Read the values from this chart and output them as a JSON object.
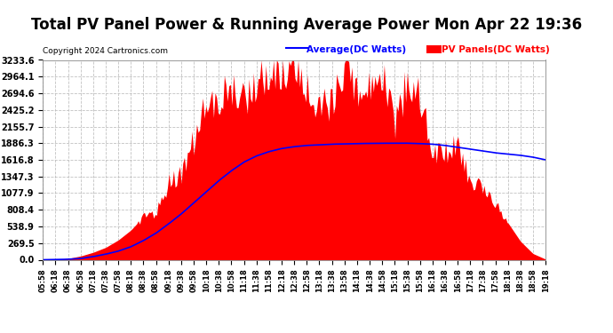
{
  "title": "Total PV Panel Power & Running Average Power Mon Apr 22 19:36",
  "copyright": "Copyright 2024 Cartronics.com",
  "legend_avg": "Average(DC Watts)",
  "legend_pv": "PV Panels(DC Watts)",
  "yticks": [
    0.0,
    269.5,
    538.9,
    808.4,
    1077.9,
    1347.3,
    1616.8,
    1886.3,
    2155.7,
    2425.2,
    2694.6,
    2964.1,
    3233.6
  ],
  "ymax": 3233.6,
  "ymin": 0.0,
  "bg_color": "#ffffff",
  "plot_bg": "#ffffff",
  "pv_color": "#ff0000",
  "avg_color": "#0000ff",
  "grid_color": "#bbbbbb",
  "title_fontsize": 12,
  "xtick_labels": [
    "05:58",
    "06:18",
    "06:38",
    "06:58",
    "07:18",
    "07:38",
    "07:58",
    "08:18",
    "08:38",
    "08:58",
    "09:18",
    "09:38",
    "09:58",
    "10:18",
    "10:38",
    "10:58",
    "11:18",
    "11:38",
    "11:58",
    "12:18",
    "12:38",
    "12:58",
    "13:18",
    "13:38",
    "13:58",
    "14:18",
    "14:38",
    "14:58",
    "15:18",
    "15:38",
    "15:58",
    "16:18",
    "16:38",
    "16:58",
    "17:18",
    "17:38",
    "17:58",
    "18:18",
    "18:38",
    "18:58",
    "19:18"
  ],
  "pv_values": [
    0,
    5,
    20,
    60,
    120,
    200,
    320,
    480,
    700,
    950,
    1200,
    1500,
    1900,
    2300,
    2700,
    2950,
    3100,
    3233,
    3150,
    3050,
    2980,
    3100,
    3050,
    2900,
    3000,
    3233,
    3100,
    2800,
    2700,
    2950,
    2400,
    2000,
    1800,
    1700,
    1500,
    1200,
    900,
    600,
    300,
    100,
    10
  ],
  "avg_values": [
    0,
    3,
    8,
    20,
    50,
    90,
    140,
    210,
    310,
    430,
    580,
    740,
    920,
    1100,
    1280,
    1440,
    1580,
    1680,
    1750,
    1800,
    1830,
    1850,
    1860,
    1870,
    1875,
    1880,
    1883,
    1885,
    1886,
    1886,
    1880,
    1870,
    1850,
    1820,
    1790,
    1760,
    1730,
    1710,
    1690,
    1660,
    1617
  ]
}
